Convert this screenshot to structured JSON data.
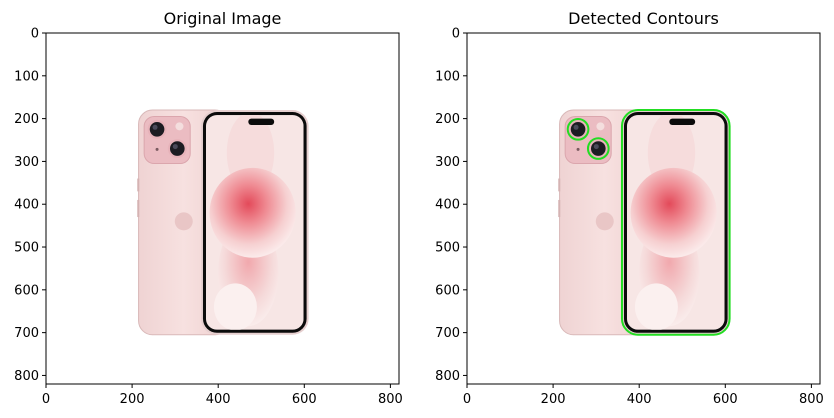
{
  "chart_data": [
    {
      "type": "image",
      "title": "Original Image",
      "xlim": [
        0,
        820
      ],
      "ylim": [
        820,
        0
      ],
      "xticks": [
        0,
        200,
        400,
        600,
        800
      ],
      "yticks": [
        0,
        100,
        200,
        300,
        400,
        500,
        600,
        700,
        800
      ],
      "xtick_labels": [
        "0",
        "200",
        "400",
        "600",
        "800"
      ],
      "ytick_labels": [
        "0",
        "100",
        "200",
        "300",
        "400",
        "500",
        "600",
        "700",
        "800"
      ],
      "phone_back": {
        "x0": 215,
        "y0": 180,
        "x1": 425,
        "y1": 705
      },
      "camera_bump": {
        "x0": 228,
        "y0": 195,
        "x1": 335,
        "y1": 305
      },
      "lens_1": {
        "cx": 258,
        "cy": 225,
        "r": 22
      },
      "lens_2": {
        "cx": 305,
        "cy": 270,
        "r": 22
      },
      "phone_front": {
        "x0": 360,
        "y0": 180,
        "x1": 610,
        "y1": 705
      },
      "dynamic_island": {
        "x0": 470,
        "y0": 200,
        "x1": 530,
        "y1": 215
      }
    },
    {
      "type": "image",
      "title": "Detected Contours",
      "xlim": [
        0,
        820
      ],
      "ylim": [
        820,
        0
      ],
      "xticks": [
        0,
        200,
        400,
        600,
        800
      ],
      "yticks": [
        0,
        100,
        200,
        300,
        400,
        500,
        600,
        700,
        800
      ],
      "xtick_labels": [
        "0",
        "200",
        "400",
        "600",
        "800"
      ],
      "ytick_labels": [
        "0",
        "100",
        "200",
        "300",
        "400",
        "500",
        "600",
        "700",
        "800"
      ],
      "contour_color": "#22dd22",
      "contours": [
        {
          "shape": "circle",
          "cx": 258,
          "cy": 225,
          "r": 24
        },
        {
          "shape": "circle",
          "cx": 305,
          "cy": 270,
          "r": 24
        },
        {
          "shape": "roundrect",
          "x0": 360,
          "y0": 180,
          "x1": 610,
          "y1": 705
        }
      ]
    }
  ]
}
